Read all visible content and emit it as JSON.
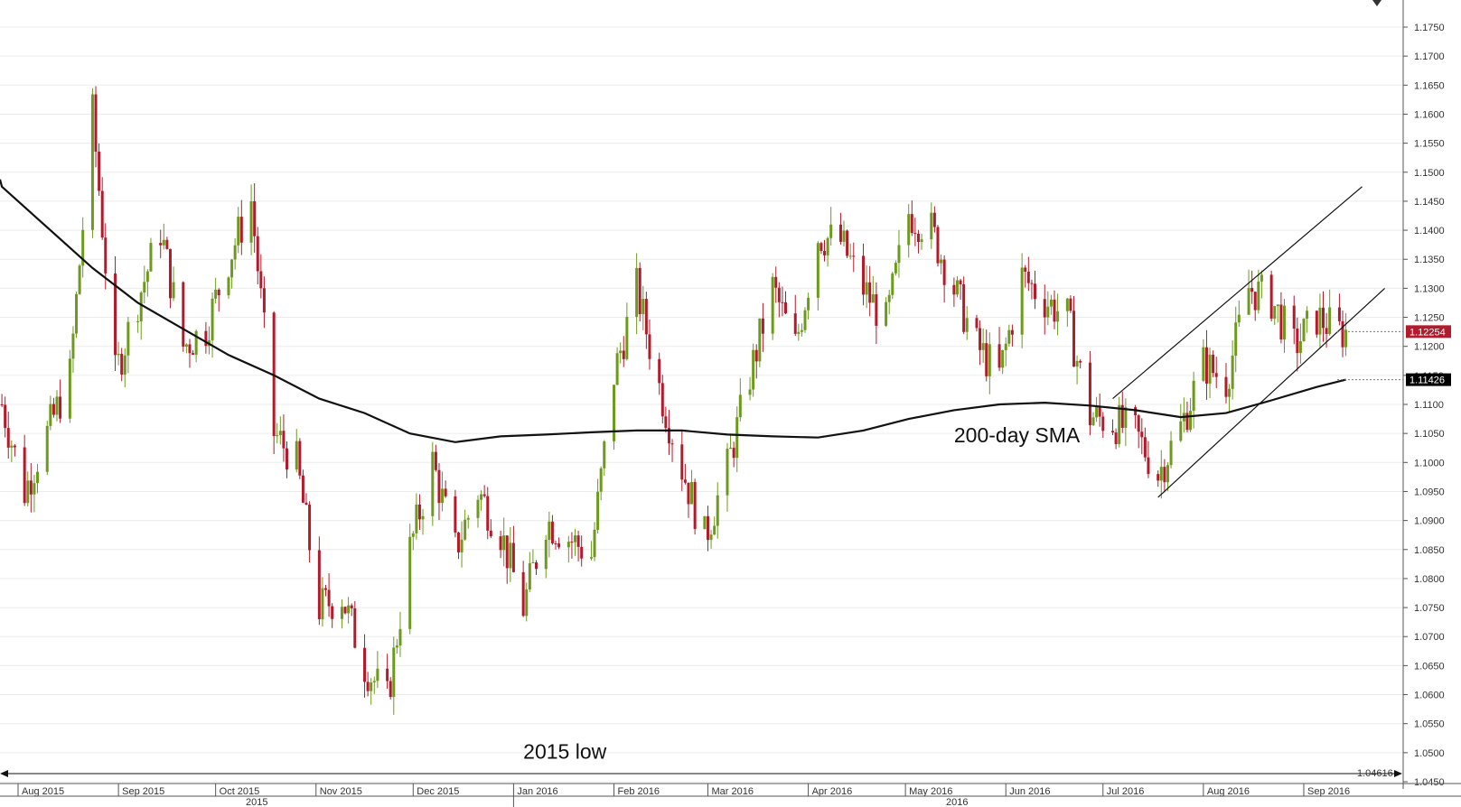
{
  "chart_data": {
    "type": "candlestick",
    "title": "",
    "xlabel": "",
    "ylabel": "",
    "ylim": [
      1.045,
      1.1775
    ],
    "grid": true,
    "y_ticks": [
      "1.1750",
      "1.1700",
      "1.1650",
      "1.1600",
      "1.1550",
      "1.1500",
      "1.1450",
      "1.1400",
      "1.1350",
      "1.1300",
      "1.1250",
      "1.1200",
      "1.1150",
      "1.1100",
      "1.1050",
      "1.1000",
      "1.0950",
      "1.0900",
      "1.0850",
      "1.0800",
      "1.0750",
      "1.0700",
      "1.0650",
      "1.0600",
      "1.0550",
      "1.0500",
      "1.0450"
    ],
    "x_month_labels": [
      "Aug 2015",
      "Sep 2015",
      "Oct 2015",
      "Nov 2015",
      "Dec 2015",
      "Jan 2016",
      "Feb 2016",
      "Mar 2016",
      "Apr 2016",
      "May 2016",
      "Jun 2016",
      "Jul 2016",
      "Aug 2016",
      "Sep 2016"
    ],
    "x_year_labels": [
      "2015",
      "2016"
    ],
    "bull_color": "#6d9a1e",
    "bear_color": "#b31b2c",
    "price_series": [
      {
        "date": "2015-07-27",
        "close": 1.11
      },
      {
        "date": "2015-08-03",
        "close": 1.095
      },
      {
        "date": "2015-08-10",
        "close": 1.105
      },
      {
        "date": "2015-08-17",
        "close": 1.115
      },
      {
        "date": "2015-08-24",
        "close": 1.16
      },
      {
        "date": "2015-08-31",
        "close": 1.115
      },
      {
        "date": "2015-09-07",
        "close": 1.128
      },
      {
        "date": "2015-09-14",
        "close": 1.14
      },
      {
        "date": "2015-09-21",
        "close": 1.12
      },
      {
        "date": "2015-09-28",
        "close": 1.123
      },
      {
        "date": "2015-10-05",
        "close": 1.135
      },
      {
        "date": "2015-10-12",
        "close": 1.145
      },
      {
        "date": "2015-10-19",
        "close": 1.105
      },
      {
        "date": "2015-10-26",
        "close": 1.1
      },
      {
        "date": "2015-11-02",
        "close": 1.075
      },
      {
        "date": "2015-11-09",
        "close": 1.077
      },
      {
        "date": "2015-11-16",
        "close": 1.065
      },
      {
        "date": "2015-11-23",
        "close": 1.059
      },
      {
        "date": "2015-11-30",
        "close": 1.085
      },
      {
        "date": "2015-12-07",
        "close": 1.1
      },
      {
        "date": "2015-12-14",
        "close": 1.085
      },
      {
        "date": "2015-12-21",
        "close": 1.095
      },
      {
        "date": "2015-12-28",
        "close": 1.088
      },
      {
        "date": "2016-01-04",
        "close": 1.075
      },
      {
        "date": "2016-01-11",
        "close": 1.09
      },
      {
        "date": "2016-01-18",
        "close": 1.087
      },
      {
        "date": "2016-01-25",
        "close": 1.084
      },
      {
        "date": "2016-02-01",
        "close": 1.115
      },
      {
        "date": "2016-02-08",
        "close": 1.13
      },
      {
        "date": "2016-02-15",
        "close": 1.113
      },
      {
        "date": "2016-02-22",
        "close": 1.099
      },
      {
        "date": "2016-02-29",
        "close": 1.087
      },
      {
        "date": "2016-03-07",
        "close": 1.099
      },
      {
        "date": "2016-03-14",
        "close": 1.115
      },
      {
        "date": "2016-03-21",
        "close": 1.13
      },
      {
        "date": "2016-03-28",
        "close": 1.12
      },
      {
        "date": "2016-04-04",
        "close": 1.139
      },
      {
        "date": "2016-04-11",
        "close": 1.138
      },
      {
        "date": "2016-04-18",
        "close": 1.13
      },
      {
        "date": "2016-04-25",
        "close": 1.124
      },
      {
        "date": "2016-05-02",
        "close": 1.143
      },
      {
        "date": "2016-05-09",
        "close": 1.14
      },
      {
        "date": "2016-05-16",
        "close": 1.13
      },
      {
        "date": "2016-05-23",
        "close": 1.12
      },
      {
        "date": "2016-05-30",
        "close": 1.115
      },
      {
        "date": "2016-06-06",
        "close": 1.132
      },
      {
        "date": "2016-06-13",
        "close": 1.128
      },
      {
        "date": "2016-06-20",
        "close": 1.125
      },
      {
        "date": "2016-06-27",
        "close": 1.108
      },
      {
        "date": "2016-07-04",
        "close": 1.107
      },
      {
        "date": "2016-07-11",
        "close": 1.105
      },
      {
        "date": "2016-07-18",
        "close": 1.098
      },
      {
        "date": "2016-07-25",
        "close": 1.106
      },
      {
        "date": "2016-08-01",
        "close": 1.117
      },
      {
        "date": "2016-08-08",
        "close": 1.114
      },
      {
        "date": "2016-08-15",
        "close": 1.13
      },
      {
        "date": "2016-08-22",
        "close": 1.128
      },
      {
        "date": "2016-08-29",
        "close": 1.12
      },
      {
        "date": "2016-09-05",
        "close": 1.125
      },
      {
        "date": "2016-09-12",
        "close": 1.1225
      }
    ],
    "sma_series": {
      "name": "200-day SMA",
      "points": [
        {
          "date": "2015-07-27",
          "value": 1.1475
        },
        {
          "date": "2015-08-10",
          "value": 1.1405
        },
        {
          "date": "2015-08-24",
          "value": 1.1335
        },
        {
          "date": "2015-09-07",
          "value": 1.1275
        },
        {
          "date": "2015-09-21",
          "value": 1.123
        },
        {
          "date": "2015-10-05",
          "value": 1.1185
        },
        {
          "date": "2015-10-19",
          "value": 1.115
        },
        {
          "date": "2015-11-02",
          "value": 1.111
        },
        {
          "date": "2015-11-16",
          "value": 1.1085
        },
        {
          "date": "2015-11-30",
          "value": 1.105
        },
        {
          "date": "2015-12-14",
          "value": 1.1035
        },
        {
          "date": "2015-12-28",
          "value": 1.1045
        },
        {
          "date": "2016-01-11",
          "value": 1.1048
        },
        {
          "date": "2016-01-25",
          "value": 1.1052
        },
        {
          "date": "2016-02-08",
          "value": 1.1055
        },
        {
          "date": "2016-02-22",
          "value": 1.1055
        },
        {
          "date": "2016-03-07",
          "value": 1.1048
        },
        {
          "date": "2016-03-21",
          "value": 1.1045
        },
        {
          "date": "2016-04-04",
          "value": 1.1043
        },
        {
          "date": "2016-04-18",
          "value": 1.1055
        },
        {
          "date": "2016-05-02",
          "value": 1.1075
        },
        {
          "date": "2016-05-16",
          "value": 1.109
        },
        {
          "date": "2016-05-30",
          "value": 1.11
        },
        {
          "date": "2016-06-13",
          "value": 1.1103
        },
        {
          "date": "2016-06-27",
          "value": 1.1098
        },
        {
          "date": "2016-07-11",
          "value": 1.109
        },
        {
          "date": "2016-07-25",
          "value": 1.1078
        },
        {
          "date": "2016-08-08",
          "value": 1.1085
        },
        {
          "date": "2016-08-22",
          "value": 1.1107
        },
        {
          "date": "2016-09-05",
          "value": 1.113
        },
        {
          "date": "2016-09-14",
          "value": 1.11426
        }
      ]
    },
    "channel_lines": [
      {
        "start": {
          "date": "2016-07-04",
          "value": 1.111
        },
        "end": {
          "date": "2016-09-19",
          "value": 1.1475
        }
      },
      {
        "start": {
          "date": "2016-07-18",
          "value": 1.094
        },
        "end": {
          "date": "2016-09-26",
          "value": 1.13
        }
      }
    ],
    "annotations": [
      {
        "text": "200-day SMA",
        "date": "2016-05-16",
        "value": 1.1035
      },
      {
        "text": "2015 low",
        "date": "2016-01-04",
        "value": 1.049
      }
    ],
    "price_tags": [
      {
        "label": "1.12254",
        "value": 1.12254,
        "color": "#b31b2c"
      },
      {
        "label": "1.11426",
        "value": 1.11426,
        "color": "#000000"
      }
    ],
    "low_marker": {
      "label": "1.04616",
      "value": 1.04616
    }
  }
}
